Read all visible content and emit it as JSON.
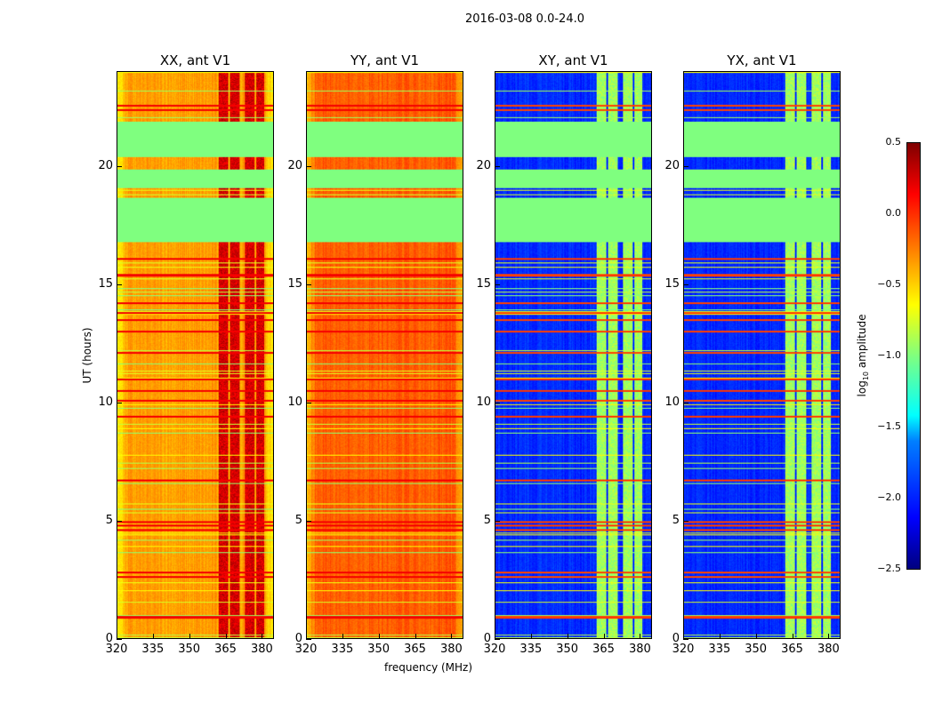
{
  "suptitle": "2016-03-08 0.0-24.0",
  "chart_data": {
    "type": "heatmap",
    "title": "2016-03-08 0.0-24.0",
    "xlabel": "frequency (MHz)",
    "ylabel": "UT (hours)",
    "xlim": [
      320,
      385
    ],
    "ylim": [
      0,
      24
    ],
    "x_ticks": [
      "320",
      "335",
      "350",
      "365",
      "380"
    ],
    "y_ticks": [
      "0",
      "5",
      "10",
      "15",
      "20"
    ],
    "colorbar": {
      "label": "log",
      "label_sub": "10",
      "label_rest": " amplitude",
      "range": [
        -2.5,
        0.5
      ],
      "ticks": [
        "0.5",
        "0.0",
        "−0.5",
        "−1.0",
        "−1.5",
        "−2.0",
        "−2.5"
      ],
      "colormap": "jet"
    },
    "flagged_value": -1.0,
    "flagged_bands_hours": [
      [
        20.4,
        21.9
      ],
      [
        19.1,
        19.9
      ],
      [
        16.8,
        18.7
      ]
    ],
    "panels": [
      {
        "title": "XX, ant V1",
        "base_level": -0.35,
        "rfi_level": 0.25,
        "rfi_columns_mhz": [
          [
            362,
            366
          ],
          [
            367,
            371
          ],
          [
            373,
            377
          ],
          [
            378,
            381
          ]
        ]
      },
      {
        "title": "YY, ant V1",
        "base_level": -0.15,
        "rfi_level": -0.05,
        "rfi_columns_mhz": []
      },
      {
        "title": "XY, ant V1",
        "base_level": -2.0,
        "rfi_level": -0.9,
        "rfi_columns_mhz": [
          [
            362,
            366
          ],
          [
            367,
            371
          ],
          [
            373,
            377
          ],
          [
            378,
            381
          ]
        ]
      },
      {
        "title": "YX, ant V1",
        "base_level": -2.0,
        "rfi_level": -0.9,
        "rfi_columns_mhz": [
          [
            362,
            366
          ],
          [
            367,
            371
          ],
          [
            373,
            377
          ],
          [
            378,
            381
          ]
        ]
      }
    ],
    "bright_time_lines_hours": [
      0.9,
      2.6,
      2.8,
      4.6,
      4.8,
      4.95,
      6.7,
      9.4,
      10.1,
      10.5,
      11.0,
      12.1,
      13.0,
      13.5,
      13.8,
      14.2,
      15.4,
      16.1,
      22.4,
      22.6
    ]
  }
}
